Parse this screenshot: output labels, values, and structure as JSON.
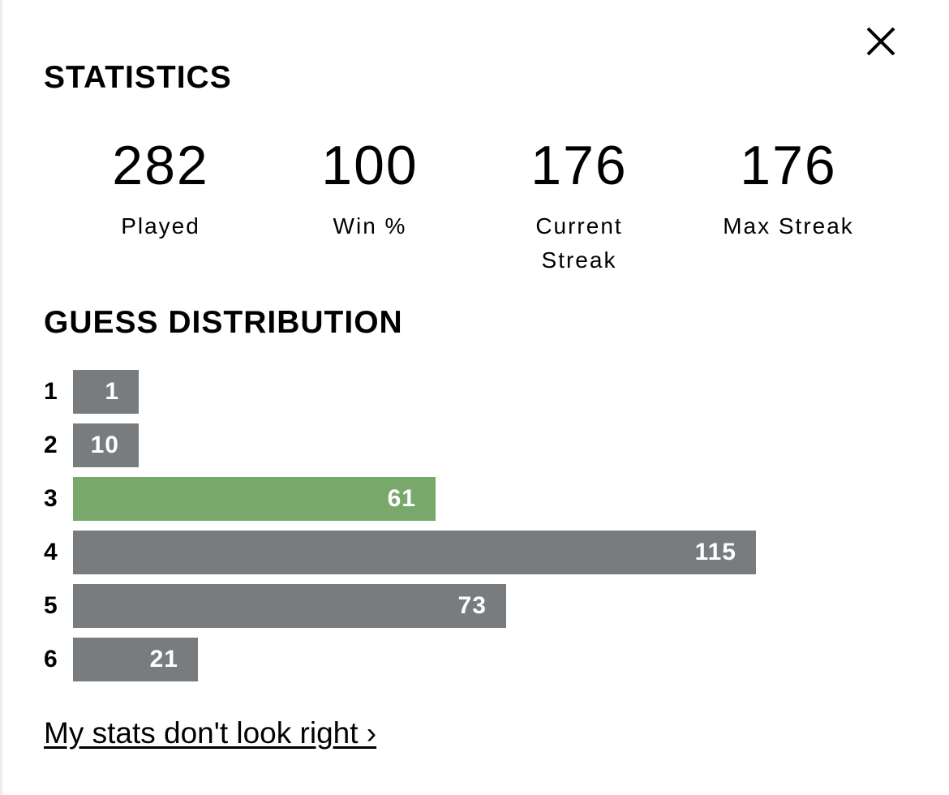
{
  "statistics": {
    "title": "STATISTICS",
    "items": [
      {
        "value": "282",
        "label": "Played"
      },
      {
        "value": "100",
        "label": "Win %"
      },
      {
        "value": "176",
        "label": "Current Streak"
      },
      {
        "value": "176",
        "label": "Max Streak"
      }
    ]
  },
  "distribution": {
    "title": "GUESS DISTRIBUTION",
    "highlight_color": "#79a86b",
    "bar_color": "#787c7e",
    "rows": [
      {
        "guess": "1",
        "count": 1,
        "highlight": false
      },
      {
        "guess": "2",
        "count": 10,
        "highlight": false
      },
      {
        "guess": "3",
        "count": 61,
        "highlight": true
      },
      {
        "guess": "4",
        "count": 115,
        "highlight": false
      },
      {
        "guess": "5",
        "count": 73,
        "highlight": false
      },
      {
        "guess": "6",
        "count": 21,
        "highlight": false
      }
    ]
  },
  "footer": {
    "link_text": "My stats don't look right ›"
  },
  "close": {
    "icon": "close-icon"
  }
}
